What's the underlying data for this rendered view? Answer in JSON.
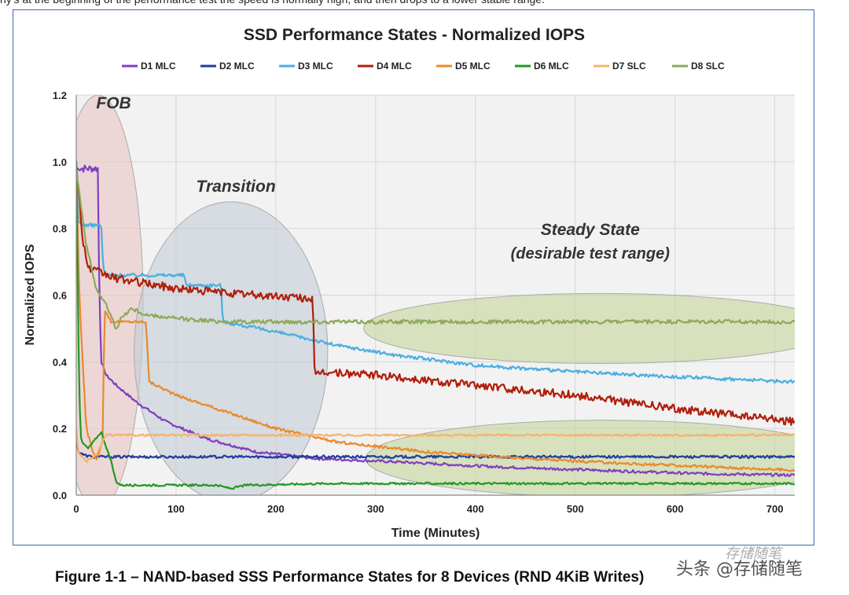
{
  "top_text": "hy's at the beginning of the performance test the speed is normally high, and then drops to a lower stable range.",
  "caption": "Figure 1-1 – NAND-based SSS Performance States for 8 Devices (RND 4KiB Writes)",
  "watermark": "头条 @存储随笔",
  "watermark_faint": "存储随笔",
  "chart_data": {
    "type": "line",
    "title": "SSD Performance States - Normalized IOPS",
    "xlabel": "Time (Minutes)",
    "ylabel": "Normalized IOPS",
    "xlim": [
      0,
      720
    ],
    "ylim": [
      0,
      1.2
    ],
    "xticks": [
      0,
      100,
      200,
      300,
      400,
      500,
      600,
      700
    ],
    "yticks": [
      0.0,
      0.2,
      0.4,
      0.6,
      0.8,
      1.0,
      1.2
    ],
    "ytick_labels": [
      "0.0",
      "0.2",
      "0.4",
      "0.6",
      "0.8",
      "1.0",
      "1.2"
    ],
    "grid": true,
    "legend_position": "top",
    "annotations": [
      {
        "text": "FOB",
        "x": 20,
        "y": 1.16
      },
      {
        "text": "Transition",
        "x": 160,
        "y": 0.91
      },
      {
        "text": "Steady State",
        "x": 515,
        "y": 0.78
      },
      {
        "text": "(desirable test range)",
        "x": 515,
        "y": 0.71
      }
    ],
    "regions": [
      {
        "name": "fob-region",
        "cx": 22,
        "cy": 0.58,
        "rx": 45,
        "ry": 0.62,
        "color": "#e7c5c3"
      },
      {
        "name": "transition-region",
        "cx": 155,
        "cy": 0.43,
        "rx": 97,
        "ry": 0.45,
        "color": "#c3cdd6"
      },
      {
        "name": "steady-upper-region",
        "cx": 525,
        "cy": 0.5,
        "rx": 237,
        "ry": 0.105,
        "color": "#c4d59a"
      },
      {
        "name": "steady-lower-region",
        "cx": 530,
        "cy": 0.11,
        "rx": 240,
        "ry": 0.115,
        "color": "#c4d59a"
      }
    ],
    "series": [
      {
        "name": "D1 MLC",
        "color": "#7f3fbf",
        "x": [
          0,
          3,
          22,
          23,
          25,
          30,
          40,
          60,
          90,
          130,
          180,
          240,
          320,
          420,
          520,
          620,
          720
        ],
        "y": [
          0.98,
          0.98,
          0.98,
          0.62,
          0.4,
          0.36,
          0.33,
          0.28,
          0.22,
          0.17,
          0.13,
          0.11,
          0.1,
          0.085,
          0.075,
          0.065,
          0.06
        ],
        "noise": 0.004,
        "flicker": [
          3,
          22,
          0.012
        ]
      },
      {
        "name": "D2 MLC",
        "color": "#1f3d9c",
        "x": [
          0,
          2,
          8,
          15,
          720
        ],
        "y": [
          0.18,
          0.13,
          0.12,
          0.115,
          0.115
        ],
        "noise": 0.004
      },
      {
        "name": "D3 MLC",
        "color": "#4aaee0",
        "x": [
          0,
          2,
          8,
          25,
          27,
          30,
          45,
          108,
          110,
          145,
          147,
          200,
          260,
          320,
          400,
          500,
          600,
          720
        ],
        "y": [
          1.0,
          0.82,
          0.81,
          0.81,
          0.68,
          0.66,
          0.66,
          0.66,
          0.63,
          0.63,
          0.52,
          0.49,
          0.45,
          0.42,
          0.39,
          0.37,
          0.355,
          0.34
        ],
        "noise": 0.005
      },
      {
        "name": "D4 MLC",
        "color": "#b01e0a",
        "x": [
          0,
          6,
          12,
          40,
          100,
          180,
          237,
          239,
          245,
          300,
          400,
          500,
          600,
          720
        ],
        "y": [
          1.0,
          0.78,
          0.68,
          0.65,
          0.62,
          0.6,
          0.59,
          0.35,
          0.37,
          0.36,
          0.33,
          0.3,
          0.26,
          0.22
        ],
        "noise": 0.012
      },
      {
        "name": "D5 MLC",
        "color": "#e88a2e",
        "x": [
          0,
          3,
          10,
          20,
          27,
          28,
          35,
          70,
          73,
          80,
          100,
          130,
          150,
          200,
          260,
          350,
          450,
          550,
          720
        ],
        "y": [
          1.0,
          0.6,
          0.2,
          0.1,
          0.17,
          0.56,
          0.52,
          0.52,
          0.34,
          0.33,
          0.3,
          0.27,
          0.25,
          0.2,
          0.16,
          0.13,
          0.11,
          0.095,
          0.075
        ],
        "noise": 0.004
      },
      {
        "name": "D6 MLC",
        "color": "#229922",
        "x": [
          0,
          3,
          5,
          12,
          25,
          35,
          40,
          45,
          140,
          155,
          170,
          250,
          720
        ],
        "y": [
          1.0,
          0.3,
          0.16,
          0.14,
          0.19,
          0.1,
          0.04,
          0.03,
          0.03,
          0.02,
          0.03,
          0.035,
          0.035
        ],
        "noise": 0.003
      },
      {
        "name": "D7 SLC",
        "color": "#f5b36e",
        "x": [
          0,
          2,
          10,
          20,
          28,
          30,
          720
        ],
        "y": [
          0.2,
          0.13,
          0.1,
          0.12,
          0.17,
          0.18,
          0.18
        ],
        "noise": 0.003
      },
      {
        "name": "D8 SLC",
        "color": "#8fa85a",
        "x": [
          0,
          10,
          20,
          30,
          40,
          45,
          55,
          70,
          100,
          150,
          200,
          300,
          720
        ],
        "y": [
          0.98,
          0.75,
          0.62,
          0.57,
          0.5,
          0.53,
          0.56,
          0.54,
          0.53,
          0.52,
          0.52,
          0.52,
          0.52
        ],
        "noise": 0.006
      }
    ]
  }
}
